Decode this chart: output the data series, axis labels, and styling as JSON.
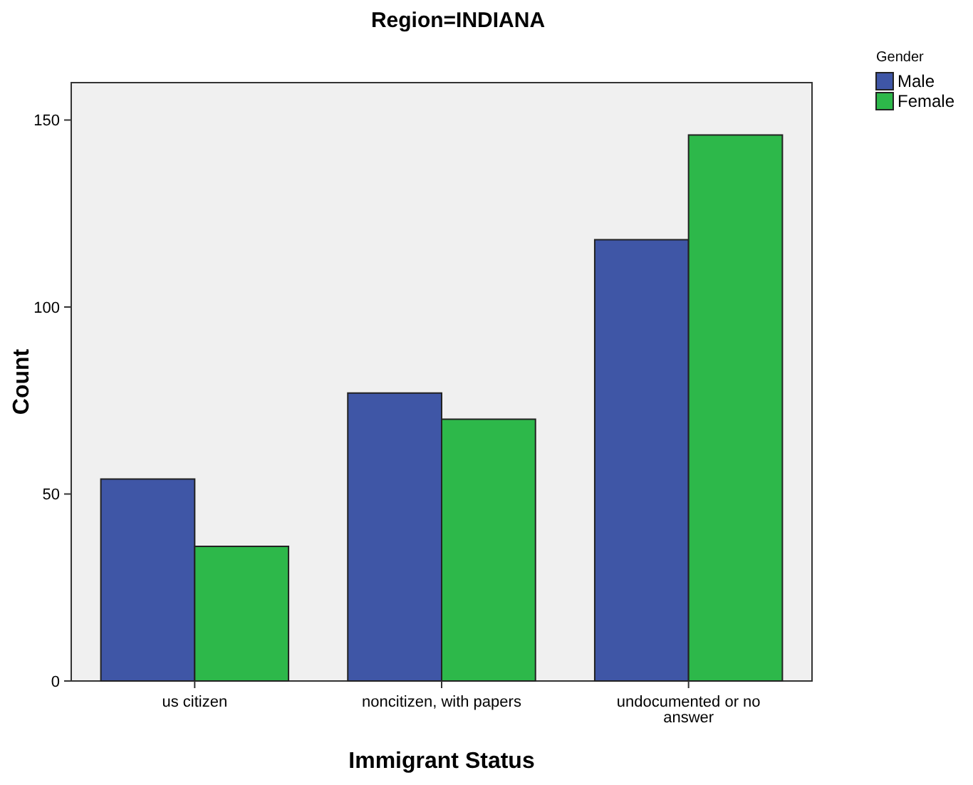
{
  "chart_data": {
    "type": "bar",
    "title": "Region=INDIANA",
    "xlabel": "Immigrant Status",
    "ylabel": "Count",
    "legend_title": "Gender",
    "categories": [
      "us citizen",
      "noncitizen, with papers",
      "undocumented or no answer"
    ],
    "series": [
      {
        "name": "Male",
        "color": "#3f56a6",
        "values": [
          54,
          77,
          118
        ]
      },
      {
        "name": "Female",
        "color": "#2db84a",
        "values": [
          36,
          70,
          146
        ]
      }
    ],
    "ylim": [
      0,
      160
    ],
    "yticks": [
      0,
      50,
      100,
      150
    ],
    "grid": false,
    "legend": "top right"
  }
}
